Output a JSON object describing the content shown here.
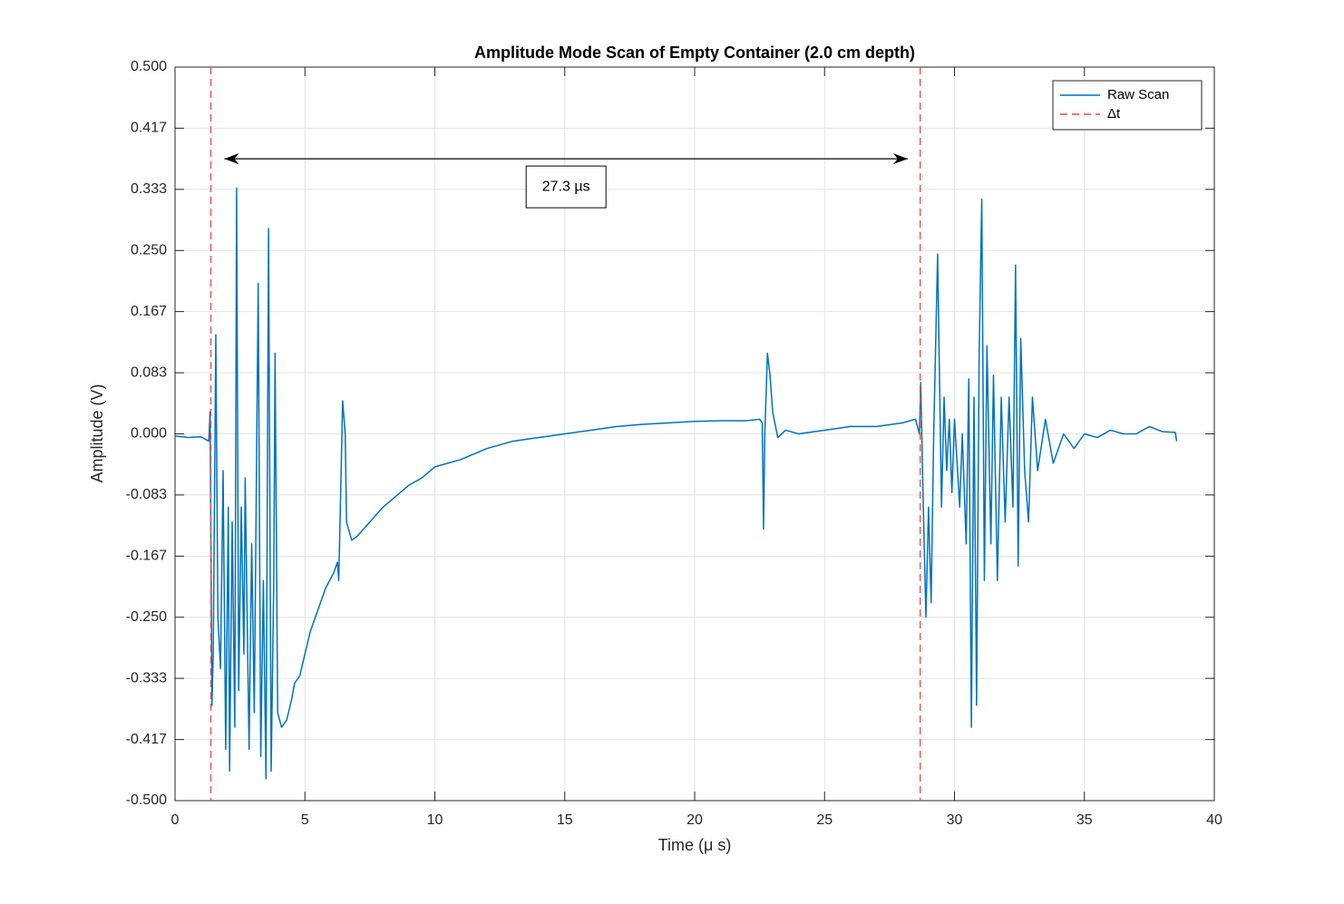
{
  "chart_data": {
    "type": "line",
    "title": "Amplitude Mode Scan of Empty Container (2.0 cm depth)",
    "xlabel": "Time (μ s)",
    "ylabel": "Amplitude (V)",
    "xlim": [
      0,
      40
    ],
    "xticks": [
      0,
      5,
      10,
      15,
      20,
      25,
      30,
      35,
      40
    ],
    "ylim": [
      -0.5,
      0.5
    ],
    "yticks": [
      {
        "value": -0.5,
        "label": "-0.500"
      },
      {
        "value": -0.4167,
        "label": "-0.417"
      },
      {
        "value": -0.3333,
        "label": "-0.333"
      },
      {
        "value": -0.25,
        "label": "-0.250"
      },
      {
        "value": -0.1667,
        "label": "-0.167"
      },
      {
        "value": -0.0833,
        "label": "-0.083"
      },
      {
        "value": 0,
        "label": "0.000"
      },
      {
        "value": 0.0833,
        "label": "0.083"
      },
      {
        "value": 0.1667,
        "label": "0.167"
      },
      {
        "value": 0.25,
        "label": "0.250"
      },
      {
        "value": 0.3333,
        "label": "0.333"
      },
      {
        "value": 0.4167,
        "label": "0.417"
      },
      {
        "value": 0.5,
        "label": "0.500"
      }
    ],
    "grid": true,
    "legend": "northeast",
    "series": [
      {
        "name": "Raw Scan",
        "color": "#0072bd",
        "x": [
          0,
          0.5,
          1.0,
          1.3,
          1.35,
          1.42,
          1.47,
          1.57,
          1.65,
          1.75,
          1.85,
          1.95,
          2.05,
          2.1,
          2.2,
          2.3,
          2.37,
          2.45,
          2.55,
          2.65,
          2.7,
          2.85,
          2.95,
          3.05,
          3.2,
          3.3,
          3.4,
          3.5,
          3.6,
          3.7,
          3.8,
          3.85,
          3.95,
          4.1,
          4.3,
          4.5,
          4.6,
          4.8,
          5.0,
          5.2,
          5.5,
          5.8,
          6.1,
          6.25,
          6.3,
          6.4,
          6.45,
          6.55,
          6.6,
          6.8,
          7.0,
          7.5,
          8.0,
          8.5,
          9.0,
          9.5,
          10.0,
          11.0,
          12.0,
          13.0,
          14.0,
          15.0,
          16.0,
          17.0,
          18.0,
          19.0,
          20.0,
          21.0,
          22.0,
          22.5,
          22.6,
          22.65,
          22.7,
          22.8,
          22.9,
          23.0,
          23.2,
          23.5,
          24.0,
          25.0,
          26.0,
          27.0,
          28.0,
          28.5,
          28.65,
          28.7,
          28.8,
          28.9,
          29.0,
          29.1,
          29.2,
          29.35,
          29.5,
          29.6,
          29.7,
          29.8,
          29.9,
          30.0,
          30.2,
          30.3,
          30.45,
          30.55,
          30.65,
          30.75,
          30.85,
          30.95,
          31.05,
          31.15,
          31.25,
          31.4,
          31.5,
          31.65,
          31.8,
          31.95,
          32.1,
          32.25,
          32.35,
          32.45,
          32.55,
          32.7,
          32.85,
          33.0,
          33.2,
          33.5,
          33.8,
          34.2,
          34.6,
          35.0,
          35.5,
          36.0,
          36.5,
          37.0,
          37.5,
          38.0,
          38.5,
          38.55
        ],
        "values": [
          -0.003,
          -0.005,
          -0.004,
          -0.01,
          0.03,
          -0.37,
          -0.3,
          0.135,
          -0.25,
          -0.32,
          -0.05,
          -0.43,
          -0.1,
          -0.46,
          -0.12,
          -0.4,
          0.335,
          -0.35,
          -0.1,
          -0.3,
          -0.06,
          -0.43,
          -0.15,
          -0.38,
          0.205,
          -0.44,
          -0.2,
          -0.47,
          0.28,
          -0.46,
          -0.2,
          0.11,
          -0.38,
          -0.4,
          -0.39,
          -0.36,
          -0.34,
          -0.33,
          -0.3,
          -0.27,
          -0.24,
          -0.21,
          -0.19,
          -0.175,
          -0.2,
          -0.04,
          0.045,
          0.0,
          -0.12,
          -0.145,
          -0.14,
          -0.12,
          -0.1,
          -0.085,
          -0.07,
          -0.06,
          -0.045,
          -0.035,
          -0.02,
          -0.01,
          -0.005,
          0.0,
          0.005,
          0.01,
          0.013,
          0.015,
          0.017,
          0.018,
          0.018,
          0.02,
          0.015,
          -0.13,
          0.0,
          0.11,
          0.08,
          0.03,
          -0.005,
          0.005,
          0.0,
          0.005,
          0.01,
          0.01,
          0.015,
          0.02,
          0.0,
          0.07,
          -0.1,
          -0.25,
          -0.1,
          -0.23,
          0.0,
          0.245,
          -0.1,
          0.05,
          -0.05,
          0.02,
          -0.08,
          0.02,
          -0.1,
          0.0,
          -0.15,
          0.075,
          -0.4,
          0.05,
          -0.37,
          0.11,
          0.32,
          -0.2,
          0.12,
          -0.15,
          0.08,
          -0.2,
          0.05,
          -0.12,
          0.05,
          -0.1,
          0.23,
          -0.18,
          0.13,
          -0.05,
          -0.12,
          0.05,
          -0.05,
          0.02,
          -0.04,
          0.0,
          -0.02,
          0.0,
          -0.005,
          0.005,
          0.0,
          0.0,
          0.01,
          0.003,
          0.002,
          -0.01
        ]
      }
    ],
    "vlines": {
      "name": "Δt",
      "color": "#f04848",
      "x": [
        1.38,
        28.68
      ]
    },
    "annotation": {
      "text": "27.3 µs",
      "x": [
        1.9,
        28.2
      ],
      "y": 0.375
    }
  }
}
